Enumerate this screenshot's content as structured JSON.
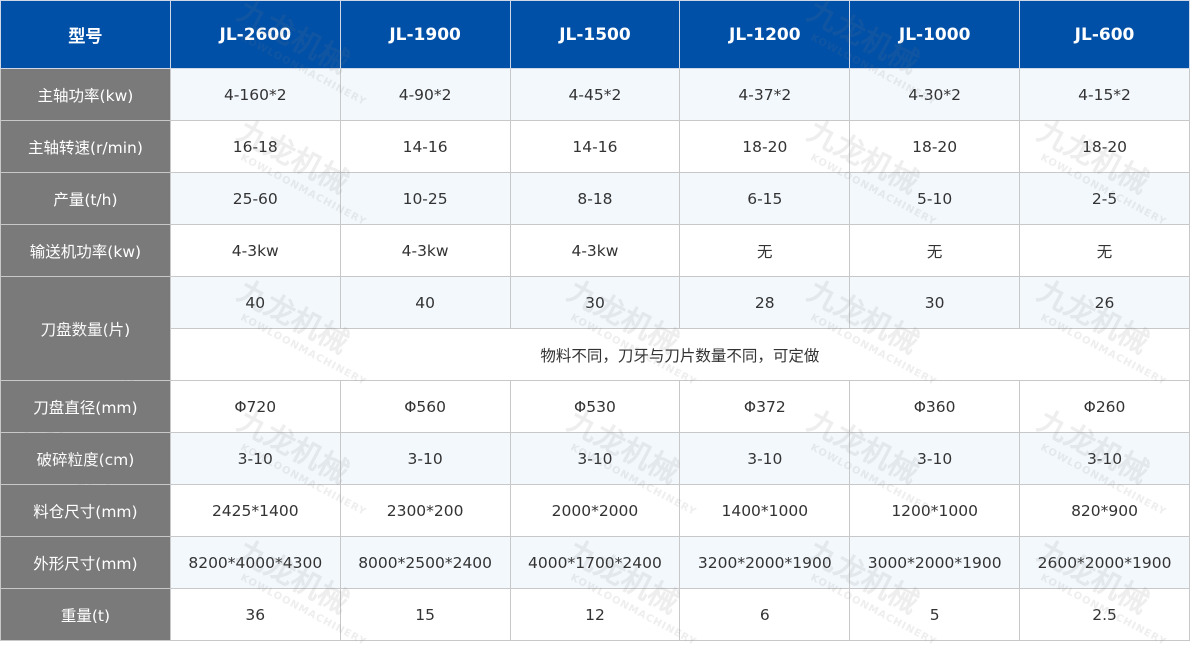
{
  "header": {
    "label": "型号",
    "models": [
      "JL-2600",
      "JL-1900",
      "JL-1500",
      "JL-1200",
      "JL-1000",
      "JL-600"
    ]
  },
  "rows": [
    {
      "label": "主轴功率(kw)",
      "values": [
        "4-160*2",
        "4-90*2",
        "4-45*2",
        "4-37*2",
        "4-30*2",
        "4-15*2"
      ]
    },
    {
      "label": "主轴转速(r/min)",
      "values": [
        "16-18",
        "14-16",
        "14-16",
        "18-20",
        "18-20",
        "18-20"
      ]
    },
    {
      "label": "产量(t/h)",
      "values": [
        "25-60",
        "10-25",
        "8-18",
        "6-15",
        "5-10",
        "2-5"
      ]
    },
    {
      "label": "输送机功率(kw)",
      "values": [
        "4-3kw",
        "4-3kw",
        "4-3kw",
        "无",
        "无",
        "无"
      ]
    },
    {
      "label": "刀盘数量(片)",
      "values": [
        "40",
        "40",
        "30",
        "28",
        "30",
        "26"
      ],
      "note": "物料不同，刀牙与刀片数量不同，可定做"
    },
    {
      "label": "刀盘直径(mm)",
      "values": [
        "Φ720",
        "Φ560",
        "Φ530",
        "Φ372",
        "Φ360",
        "Φ260"
      ]
    },
    {
      "label": "破碎粒度(cm)",
      "values": [
        "3-10",
        "3-10",
        "3-10",
        "3-10",
        "3-10",
        "3-10"
      ]
    },
    {
      "label": "料仓尺寸(mm)",
      "values": [
        "2425*1400",
        "2300*200",
        "2000*2000",
        "1400*1000",
        "1200*1000",
        "820*900"
      ]
    },
    {
      "label": "外形尺寸(mm)",
      "values": [
        "8200*4000*4300",
        "8000*2500*2400",
        "4000*1700*2400",
        "3200*2000*1900",
        "3000*2000*1900",
        "2600*2000*1900"
      ]
    },
    {
      "label": "重量(t)",
      "values": [
        "36",
        "15",
        "12",
        "6",
        "5",
        "2.5"
      ]
    }
  ],
  "watermark": {
    "cn": "九龙机械",
    "en": "KOWLOONMACHINERY"
  },
  "colors": {
    "header": "#0050a8",
    "label_col": "#7a7a7a",
    "alt_row": "#f3f8fd"
  }
}
